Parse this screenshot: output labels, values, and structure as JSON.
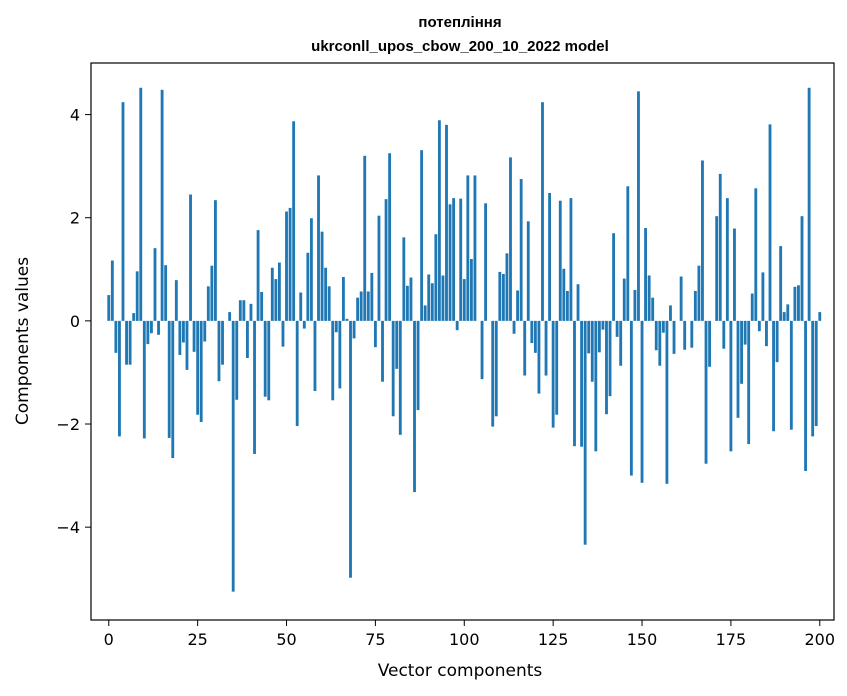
{
  "chart_data": {
    "type": "bar",
    "title": "потепління",
    "subtitle": "ukrconll_upos_cbow_200_10_2022 model",
    "xlabel": "Vector components",
    "ylabel": "Components values",
    "xlim": [
      -5,
      204
    ],
    "ylim": [
      -5.8,
      5.0
    ],
    "xticks": [
      0,
      25,
      50,
      75,
      100,
      125,
      150,
      175,
      200
    ],
    "yticks": [
      -4,
      -2,
      0,
      2,
      4
    ],
    "ytick_labels": [
      "−4",
      "−2",
      "0",
      "2",
      "4"
    ],
    "grid": false,
    "bar_color": "#1f77b4",
    "values": [
      0.5,
      1.17,
      -0.62,
      -2.24,
      4.24,
      -0.85,
      -0.85,
      0.15,
      0.96,
      4.52,
      -2.28,
      -0.45,
      -0.24,
      1.41,
      -0.27,
      4.48,
      1.08,
      -2.27,
      -2.66,
      0.79,
      -0.66,
      -0.42,
      -0.95,
      2.45,
      -0.6,
      -1.82,
      -1.96,
      -0.4,
      0.67,
      1.07,
      2.34,
      -1.17,
      -0.85,
      0.0,
      0.17,
      -5.25,
      -1.53,
      0.4,
      0.4,
      -0.72,
      0.33,
      -2.58,
      1.76,
      0.56,
      -1.47,
      -1.54,
      1.03,
      0.81,
      1.13,
      -0.5,
      2.12,
      2.19,
      3.87,
      -2.04,
      0.55,
      -0.15,
      1.32,
      1.99,
      -1.36,
      2.82,
      1.73,
      1.03,
      0.67,
      -1.54,
      -0.22,
      -1.31,
      0.85,
      0.04,
      -4.98,
      -0.34,
      0.45,
      0.57,
      3.2,
      0.57,
      0.93,
      -0.51,
      2.04,
      -1.18,
      2.36,
      3.25,
      -1.85,
      -0.93,
      -2.21,
      1.62,
      0.68,
      0.84,
      -3.32,
      -1.73,
      3.31,
      0.3,
      0.9,
      0.73,
      1.68,
      3.89,
      0.88,
      3.8,
      2.26,
      2.38,
      -0.18,
      2.37,
      0.81,
      2.82,
      1.2,
      2.82,
      0.0,
      -1.13,
      2.28,
      0.0,
      -2.05,
      -1.85,
      0.95,
      0.91,
      1.31,
      3.17,
      -0.25,
      0.59,
      2.75,
      -1.06,
      1.93,
      -0.43,
      -0.62,
      -1.41,
      4.24,
      -1.06,
      2.48,
      -2.07,
      -1.82,
      2.33,
      1.01,
      0.58,
      2.38,
      -2.43,
      0.71,
      -2.44,
      -4.34,
      -0.63,
      -1.18,
      -2.53,
      -0.61,
      -0.17,
      -1.81,
      -1.46,
      1.7,
      -0.31,
      -0.87,
      0.82,
      2.61,
      -3.0,
      0.6,
      4.45,
      -3.14,
      1.8,
      0.88,
      0.45,
      -0.57,
      -0.87,
      -0.23,
      -3.16,
      0.3,
      -0.64,
      0.0,
      0.86,
      -0.56,
      0.0,
      -0.52,
      0.58,
      1.07,
      3.11,
      -2.77,
      -0.89,
      0.0,
      2.03,
      2.85,
      -0.54,
      2.38,
      -2.53,
      1.79,
      -1.88,
      -1.22,
      -0.46,
      -2.39,
      0.53,
      2.57,
      -0.2,
      0.94,
      -0.49,
      3.81,
      -2.14,
      -0.8,
      1.45,
      0.17,
      0.32,
      -2.11,
      0.66,
      0.69,
      2.03,
      -2.91,
      4.52,
      -2.24,
      -2.04,
      0.17
    ]
  }
}
